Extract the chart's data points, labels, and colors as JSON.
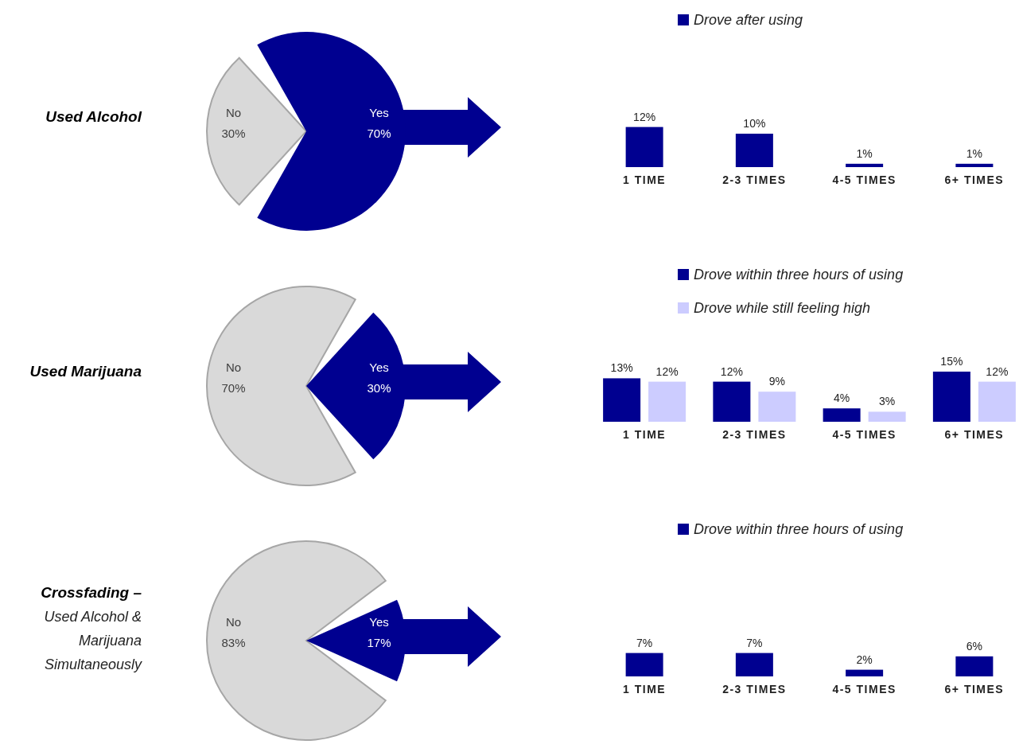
{
  "chart_data": [
    {
      "type": "pie",
      "title": "Used Alcohol",
      "categories": [
        "No",
        "Yes"
      ],
      "values": [
        30,
        70
      ],
      "value_labels": [
        "30%",
        "70%"
      ],
      "colors": [
        "#d9d9d9",
        "#000090"
      ]
    },
    {
      "type": "bar",
      "categories": [
        "1 TIME",
        "2-3 TIMES",
        "4-5 TIMES",
        "6+ TIMES"
      ],
      "tick_labels": "x",
      "legend": "top",
      "series": [
        {
          "name": "Drove after using",
          "color": "#000090",
          "values": [
            12,
            10,
            1,
            1
          ],
          "value_labels": [
            "12%",
            "10%",
            "1%",
            "1%"
          ]
        }
      ]
    },
    {
      "type": "pie",
      "title": "Used Marijuana",
      "categories": [
        "No",
        "Yes"
      ],
      "values": [
        70,
        30
      ],
      "value_labels": [
        "70%",
        "30%"
      ],
      "colors": [
        "#d9d9d9",
        "#000090"
      ]
    },
    {
      "type": "bar",
      "categories": [
        "1 TIME",
        "2-3 TIMES",
        "4-5 TIMES",
        "6+ TIMES"
      ],
      "tick_labels": "x",
      "legend": "top",
      "series": [
        {
          "name": "Drove within three hours of using",
          "color": "#000090",
          "values": [
            13,
            12,
            4,
            15
          ],
          "value_labels": [
            "13%",
            "12%",
            "4%",
            "15%"
          ]
        },
        {
          "name": "Drove while still feeling high",
          "color": "#ccccff",
          "values": [
            12,
            9,
            3,
            12
          ],
          "value_labels": [
            "12%",
            "9%",
            "3%",
            "12%"
          ]
        }
      ]
    },
    {
      "type": "pie",
      "title": "Crossfading –",
      "subtitle": "Used Alcohol & Marijuana Simultaneously",
      "categories": [
        "No",
        "Yes"
      ],
      "values": [
        83,
        17
      ],
      "value_labels": [
        "83%",
        "17%"
      ],
      "colors": [
        "#d9d9d9",
        "#000090"
      ]
    },
    {
      "type": "bar",
      "categories": [
        "1 TIME",
        "2-3 TIMES",
        "4-5 TIMES",
        "6+ TIMES"
      ],
      "tick_labels": "x",
      "legend": "top",
      "series": [
        {
          "name": "Drove within three hours of using",
          "color": "#000090",
          "values": [
            7,
            7,
            2,
            6
          ],
          "value_labels": [
            "7%",
            "7%",
            "2%",
            "6%"
          ]
        }
      ]
    }
  ]
}
